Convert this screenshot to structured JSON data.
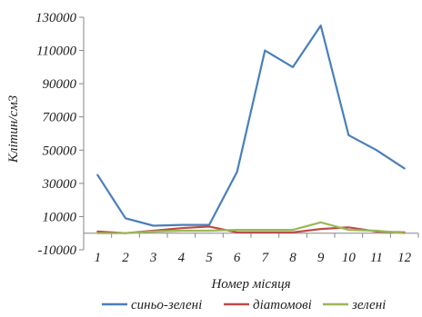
{
  "chart_data": {
    "type": "line",
    "x": [
      1,
      2,
      3,
      4,
      5,
      6,
      7,
      8,
      9,
      10,
      11,
      12
    ],
    "categories": [
      "1",
      "2",
      "3",
      "4",
      "5",
      "6",
      "7",
      "8",
      "9",
      "10",
      "11",
      "12"
    ],
    "series": [
      {
        "name": "синьо-зелені",
        "color": "#4a7ebb",
        "values": [
          35000,
          9000,
          4500,
          5000,
          5000,
          37000,
          110000,
          100000,
          125000,
          59000,
          50000,
          39000
        ]
      },
      {
        "name": "діатомові",
        "color": "#be4b48",
        "values": [
          1000,
          0,
          1500,
          3000,
          4000,
          500,
          500,
          500,
          2500,
          3500,
          1000,
          500
        ]
      },
      {
        "name": "зелені",
        "color": "#98b954",
        "values": [
          0,
          0,
          1000,
          1500,
          1500,
          2000,
          2000,
          2000,
          6500,
          2000,
          1500,
          0
        ]
      }
    ],
    "xlabel": "Номер місяця",
    "ylabel": "Клітин/см3",
    "ylim": [
      -10000,
      130000
    ],
    "yticks": [
      -10000,
      10000,
      30000,
      50000,
      70000,
      90000,
      110000,
      130000
    ],
    "grid": false,
    "legend_position": "bottom"
  }
}
